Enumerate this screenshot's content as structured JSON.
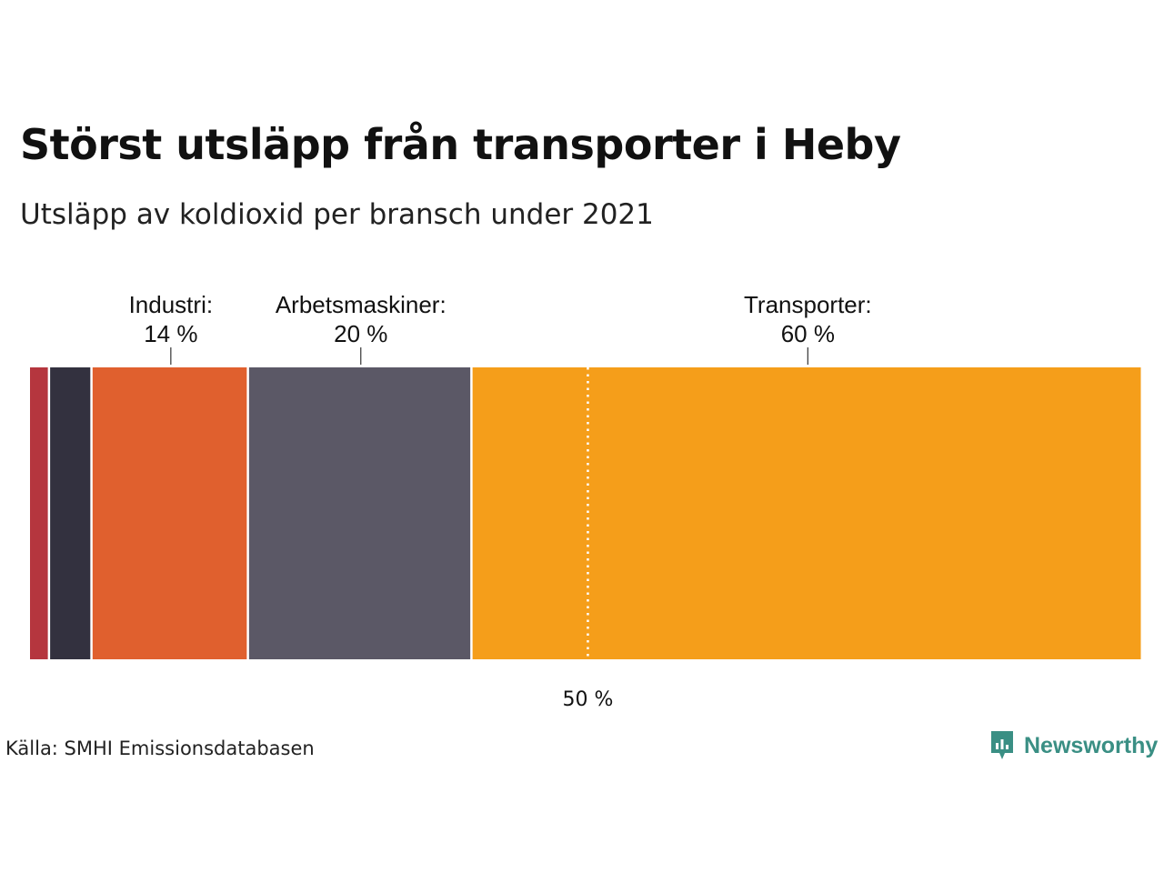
{
  "title": "Störst utsläpp från transporter i Heby",
  "subtitle": "Utsläpp av koldioxid per bransch under 2021",
  "source": "Källa: SMHI Emissionsdatabasen",
  "brand": {
    "name": "Newsworthy",
    "icon": "newsworthy-logo-icon",
    "color": "#3a8f84"
  },
  "chart_data": {
    "type": "bar",
    "stacked": true,
    "orientation": "horizontal",
    "unit": "%",
    "segments": [
      {
        "name": "",
        "value": 1.8,
        "color": "#b5363e"
      },
      {
        "name": "",
        "value": 3.8,
        "color": "#33313f"
      },
      {
        "name": "Industri:",
        "value": 14,
        "label_value": "14 %",
        "color": "#e0602e"
      },
      {
        "name": "Arbetsmaskiner:",
        "value": 20,
        "label_value": "20 %",
        "color": "#5b5866"
      },
      {
        "name": "Transporter:",
        "value": 60,
        "label_value": "60 %",
        "color": "#f59e1a"
      }
    ],
    "reference_line": {
      "value": 50,
      "label": "50 %"
    },
    "xlim": [
      0,
      100
    ],
    "grid": false,
    "legend": "none"
  }
}
